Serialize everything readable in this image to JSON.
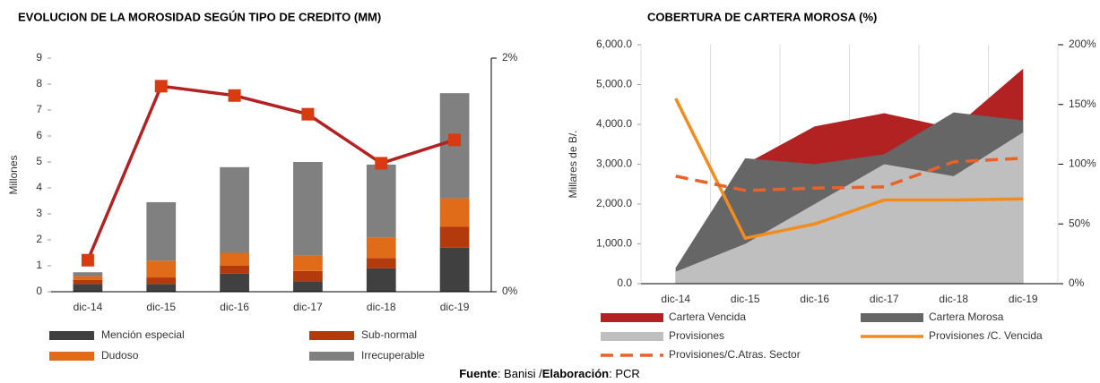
{
  "chart_data": [
    {
      "type": "bar",
      "title": "EVOLUCION DE LA MOROSIDAD SEGÚN TIPO DE CREDITO (MM)",
      "y_label": "Millones",
      "categories": [
        "dic-14",
        "dic-15",
        "dic-16",
        "dic-17",
        "dic-18",
        "dic-19"
      ],
      "stacked": true,
      "ylim": [
        0,
        9
      ],
      "yticks": [
        0,
        1,
        2,
        3,
        4,
        5,
        6,
        7,
        8,
        9
      ],
      "y2lim": [
        0,
        2
      ],
      "y2ticks": [
        {
          "value": 0,
          "label": "0%"
        },
        {
          "value": 2,
          "label": "2%"
        }
      ],
      "series": [
        {
          "name": "Mención especial",
          "kind": "bar",
          "color": "#404040",
          "values": [
            0.3,
            0.3,
            0.7,
            0.4,
            0.9,
            1.7
          ]
        },
        {
          "name": "Sub-normal",
          "kind": "bar",
          "color": "#b33a0c",
          "values": [
            0.15,
            0.25,
            0.3,
            0.4,
            0.4,
            0.8
          ]
        },
        {
          "name": "Dudoso",
          "kind": "bar",
          "color": "#e06c1a",
          "values": [
            0.15,
            0.65,
            0.5,
            0.6,
            0.8,
            1.1
          ]
        },
        {
          "name": "Irrecuperable",
          "kind": "bar",
          "color": "#808080",
          "values": [
            0.15,
            2.25,
            3.3,
            3.6,
            2.8,
            4.05
          ]
        },
        {
          "kind": "line",
          "axis": "y2",
          "color": "#b22222",
          "marker_color": "#d93a10",
          "markers": true,
          "values": [
            0.27,
            1.76,
            1.68,
            1.52,
            1.1,
            1.3
          ]
        }
      ]
    },
    {
      "type": "area",
      "title": "COBERTURA DE CARTERA MOROSA (%)",
      "y_label": "Millares de B/.",
      "categories": [
        "dic-14",
        "dic-15",
        "dic-16",
        "dic-17",
        "dic-18",
        "dic-19"
      ],
      "ylim": [
        0,
        6000
      ],
      "yticks": [
        {
          "value": 0,
          "label": "0.0"
        },
        {
          "value": 1000,
          "label": "1,000.0"
        },
        {
          "value": 2000,
          "label": "2,000.0"
        },
        {
          "value": 3000,
          "label": "3,000.0"
        },
        {
          "value": 4000,
          "label": "4,000.0"
        },
        {
          "value": 5000,
          "label": "5,000.0"
        },
        {
          "value": 6000,
          "label": "6,000.0"
        }
      ],
      "y2lim": [
        0,
        200
      ],
      "y2ticks": [
        {
          "value": 0,
          "label": "0%"
        },
        {
          "value": 50,
          "label": "50%"
        },
        {
          "value": 100,
          "label": "100%"
        },
        {
          "value": 150,
          "label": "150%"
        },
        {
          "value": 200,
          "label": "200%"
        }
      ],
      "series": [
        {
          "name": "Cartera Vencida",
          "kind": "area",
          "color": "#b22222",
          "values": [
            400,
            3000,
            3950,
            4280,
            3900,
            5400
          ]
        },
        {
          "name": "Cartera Morosa",
          "kind": "area",
          "color": "#666666",
          "values": [
            400,
            3150,
            3000,
            3250,
            4300,
            4100
          ]
        },
        {
          "name": "Provisiones",
          "kind": "area",
          "color": "#bfbfbf",
          "values": [
            300,
            1000,
            2000,
            3000,
            2700,
            3800
          ]
        },
        {
          "name": "Provisiones /C. Vencida",
          "kind": "line",
          "axis": "y2",
          "color": "#f28c1c",
          "values": [
            155,
            38,
            50,
            70,
            70,
            71
          ]
        },
        {
          "name": "Provisiones/C.Atras. Sector",
          "kind": "line",
          "axis": "y2",
          "color": "#e8622a",
          "dashed": true,
          "values": [
            90,
            78,
            80,
            81,
            102,
            105
          ]
        }
      ]
    }
  ],
  "footer": {
    "source_label": "Fuente",
    "source": ": Banisi /",
    "credit_label": "Elaboración",
    "credit": ": PCR"
  }
}
